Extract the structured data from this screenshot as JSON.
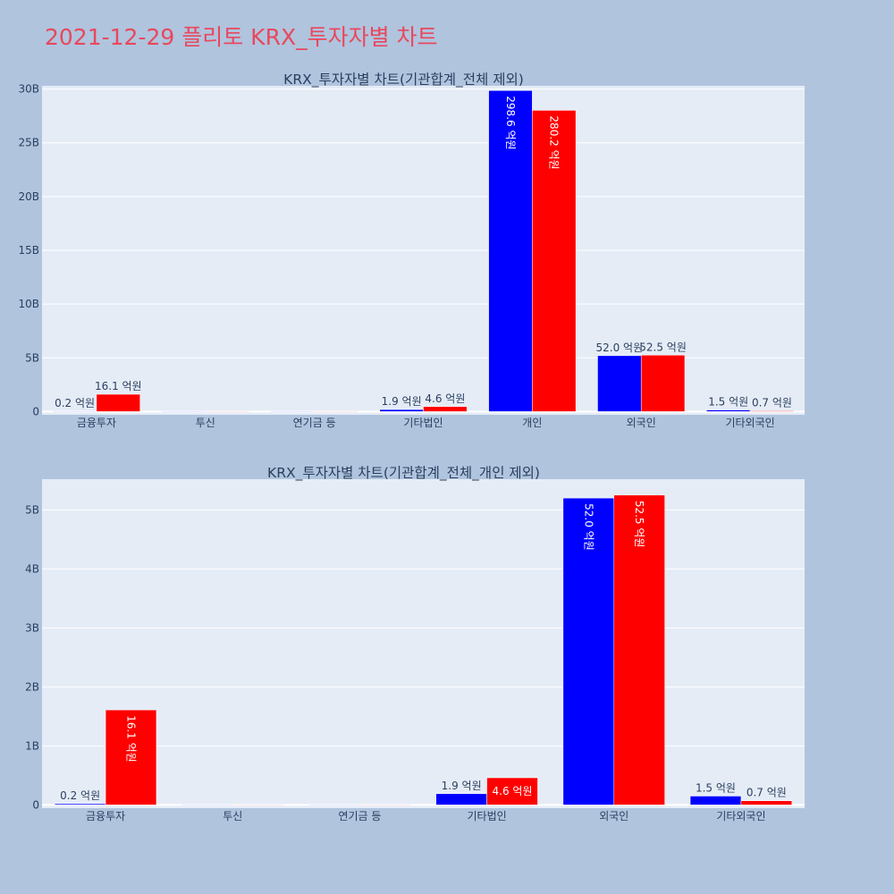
{
  "title": "2021-12-29 플리토 KRX_투자자별 차트",
  "colors": {
    "background": "#b0c4de",
    "plot_bg": "#e5ecf6",
    "title": "#e8485d",
    "series_a": "#0000ff",
    "series_b": "#ff0000"
  },
  "chart_data": [
    {
      "type": "bar",
      "title": "KRX_투자자별 차트(기관합계_전체 제외)",
      "categories": [
        "금융투자",
        "투신",
        "연기금 등",
        "기타법인",
        "개인",
        "외국인",
        "기타외국인"
      ],
      "yticks": [
        0,
        5000000000,
        10000000000,
        15000000000,
        20000000000,
        25000000000,
        30000000000
      ],
      "ytick_labels": [
        "0",
        "5B",
        "10B",
        "15B",
        "20B",
        "25B",
        "30B"
      ],
      "ylim": [
        -300000000,
        30300000000
      ],
      "grid": true,
      "series": [
        {
          "color": "#0000ff",
          "values": [
            20000000,
            0,
            0,
            190000000,
            29860000000,
            5200000000,
            150000000
          ],
          "labels": [
            "0.2 억원",
            "",
            "",
            "1.9 억원",
            "298.6 억원",
            "52.0 억원",
            "1.5 억원"
          ]
        },
        {
          "color": "#ff0000",
          "values": [
            1610000000,
            0,
            0,
            460000000,
            28020000000,
            5250000000,
            70000000
          ],
          "labels": [
            "16.1 억원",
            "",
            "",
            "4.6 억원",
            "280.2 억원",
            "52.5 억원",
            "0.7 억원"
          ]
        }
      ]
    },
    {
      "type": "bar",
      "title": "KRX_투자자별 차트(기관합계_전체_개인 제외)",
      "categories": [
        "금융투자",
        "투신",
        "연기금 등",
        "기타법인",
        "외국인",
        "기타외국인"
      ],
      "yticks": [
        0,
        1000000000,
        2000000000,
        3000000000,
        4000000000,
        5000000000
      ],
      "ytick_labels": [
        "0",
        "1B",
        "2B",
        "3B",
        "4B",
        "5B"
      ],
      "ylim": [
        -55000000,
        5520000000
      ],
      "grid": true,
      "series": [
        {
          "color": "#0000ff",
          "values": [
            20000000,
            0,
            0,
            190000000,
            5200000000,
            150000000
          ],
          "labels": [
            "0.2 억원",
            "",
            "",
            "1.9 억원",
            "52.0 억원",
            "1.5 억원"
          ]
        },
        {
          "color": "#ff0000",
          "values": [
            1610000000,
            0,
            0,
            460000000,
            5250000000,
            70000000
          ],
          "labels": [
            "16.1 억원",
            "",
            "",
            "4.6 억원",
            "52.5 억원",
            "0.7 억원"
          ]
        }
      ]
    }
  ]
}
